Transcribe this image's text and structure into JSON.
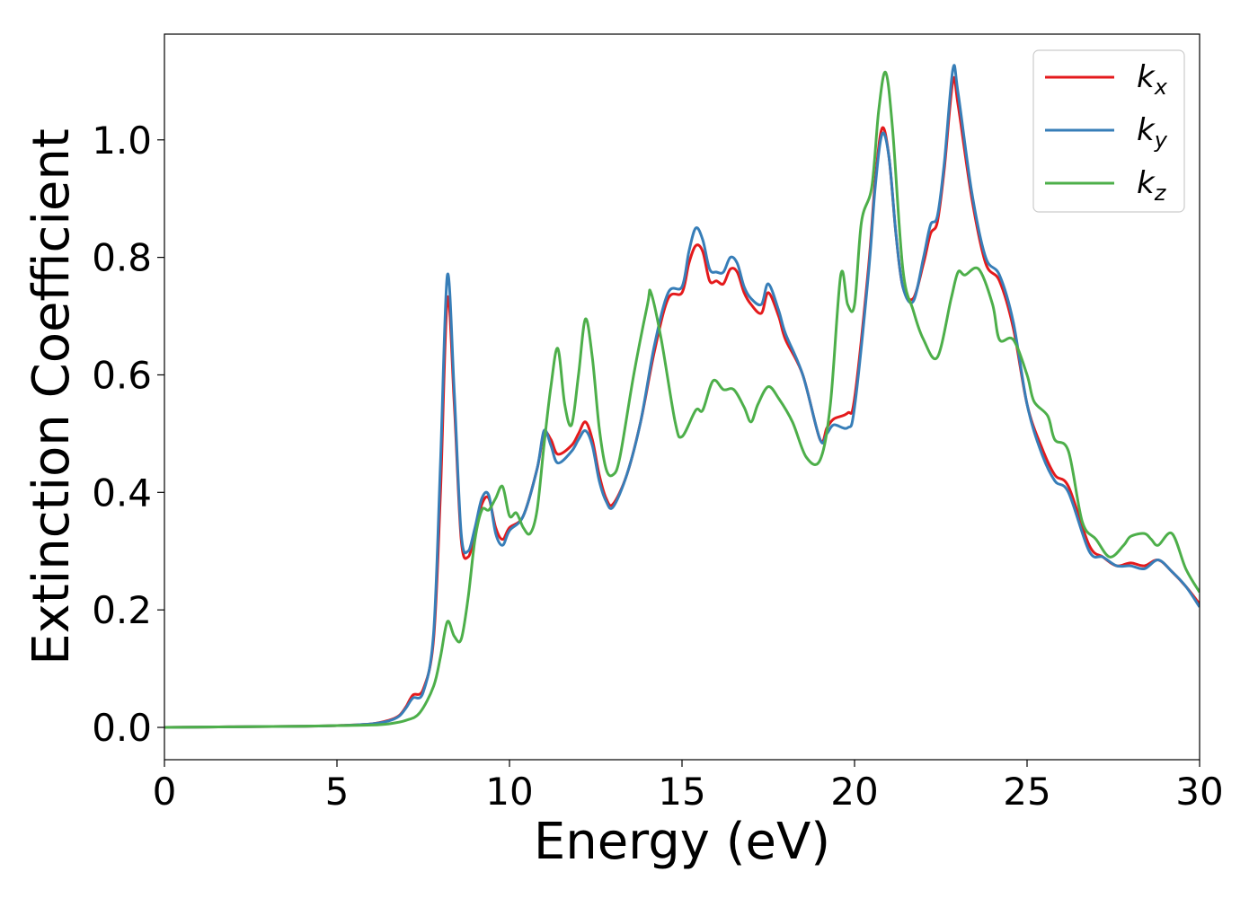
{
  "chart_data": {
    "type": "line",
    "title": "",
    "xlabel": "Energy (eV)",
    "ylabel": "Extinction Coefficient",
    "xlim": [
      0,
      30
    ],
    "ylim": [
      -0.055,
      1.18
    ],
    "xticks": [
      0,
      5,
      10,
      15,
      20,
      25,
      30
    ],
    "yticks": [
      0.0,
      0.2,
      0.4,
      0.6,
      0.8,
      1.0
    ],
    "grid": false,
    "legend_position": "top-right",
    "series": [
      {
        "name": "k",
        "subscript": "x",
        "color": "#e41a1c",
        "points": [
          [
            0,
            0
          ],
          [
            2,
            0.001
          ],
          [
            4,
            0.002
          ],
          [
            5,
            0.003
          ],
          [
            6,
            0.006
          ],
          [
            6.5,
            0.012
          ],
          [
            6.8,
            0.02
          ],
          [
            7.0,
            0.035
          ],
          [
            7.2,
            0.055
          ],
          [
            7.5,
            0.065
          ],
          [
            7.8,
            0.15
          ],
          [
            8.0,
            0.4
          ],
          [
            8.2,
            0.73
          ],
          [
            8.4,
            0.55
          ],
          [
            8.6,
            0.32
          ],
          [
            8.8,
            0.29
          ],
          [
            9.0,
            0.33
          ],
          [
            9.2,
            0.38
          ],
          [
            9.4,
            0.39
          ],
          [
            9.6,
            0.34
          ],
          [
            9.8,
            0.32
          ],
          [
            10.0,
            0.34
          ],
          [
            10.4,
            0.36
          ],
          [
            10.8,
            0.44
          ],
          [
            11.0,
            0.5
          ],
          [
            11.2,
            0.49
          ],
          [
            11.4,
            0.465
          ],
          [
            11.8,
            0.48
          ],
          [
            12.0,
            0.5
          ],
          [
            12.2,
            0.52
          ],
          [
            12.4,
            0.49
          ],
          [
            12.6,
            0.43
          ],
          [
            12.8,
            0.39
          ],
          [
            13.0,
            0.38
          ],
          [
            13.4,
            0.43
          ],
          [
            13.8,
            0.52
          ],
          [
            14.2,
            0.64
          ],
          [
            14.6,
            0.73
          ],
          [
            15.0,
            0.74
          ],
          [
            15.2,
            0.79
          ],
          [
            15.4,
            0.82
          ],
          [
            15.6,
            0.81
          ],
          [
            15.8,
            0.76
          ],
          [
            16.0,
            0.76
          ],
          [
            16.2,
            0.755
          ],
          [
            16.4,
            0.78
          ],
          [
            16.6,
            0.775
          ],
          [
            16.8,
            0.74
          ],
          [
            17.0,
            0.72
          ],
          [
            17.3,
            0.705
          ],
          [
            17.5,
            0.74
          ],
          [
            17.8,
            0.7
          ],
          [
            18.0,
            0.66
          ],
          [
            18.5,
            0.6
          ],
          [
            19.0,
            0.49
          ],
          [
            19.2,
            0.51
          ],
          [
            19.4,
            0.525
          ],
          [
            19.8,
            0.535
          ],
          [
            20.0,
            0.56
          ],
          [
            20.4,
            0.78
          ],
          [
            20.6,
            0.93
          ],
          [
            20.8,
            1.02
          ],
          [
            21.0,
            0.97
          ],
          [
            21.2,
            0.84
          ],
          [
            21.4,
            0.75
          ],
          [
            21.7,
            0.73
          ],
          [
            22.0,
            0.79
          ],
          [
            22.2,
            0.84
          ],
          [
            22.4,
            0.86
          ],
          [
            22.6,
            0.95
          ],
          [
            22.85,
            1.1
          ],
          [
            23.0,
            1.06
          ],
          [
            23.4,
            0.9
          ],
          [
            23.8,
            0.79
          ],
          [
            24.2,
            0.76
          ],
          [
            24.6,
            0.68
          ],
          [
            25.0,
            0.55
          ],
          [
            25.4,
            0.48
          ],
          [
            25.8,
            0.43
          ],
          [
            26.2,
            0.41
          ],
          [
            26.8,
            0.31
          ],
          [
            27.2,
            0.29
          ],
          [
            27.6,
            0.275
          ],
          [
            28.0,
            0.28
          ],
          [
            28.4,
            0.275
          ],
          [
            28.8,
            0.285
          ],
          [
            29.2,
            0.265
          ],
          [
            29.6,
            0.24
          ],
          [
            30.0,
            0.21
          ]
        ]
      },
      {
        "name": "k",
        "subscript": "y",
        "color": "#377eb8",
        "points": [
          [
            0,
            0
          ],
          [
            2,
            0.001
          ],
          [
            4,
            0.002
          ],
          [
            5,
            0.003
          ],
          [
            6,
            0.006
          ],
          [
            6.5,
            0.011
          ],
          [
            6.8,
            0.019
          ],
          [
            7.0,
            0.033
          ],
          [
            7.2,
            0.05
          ],
          [
            7.5,
            0.06
          ],
          [
            7.8,
            0.16
          ],
          [
            8.0,
            0.45
          ],
          [
            8.2,
            0.77
          ],
          [
            8.4,
            0.57
          ],
          [
            8.6,
            0.33
          ],
          [
            8.8,
            0.3
          ],
          [
            9.0,
            0.34
          ],
          [
            9.2,
            0.39
          ],
          [
            9.4,
            0.395
          ],
          [
            9.6,
            0.33
          ],
          [
            9.8,
            0.31
          ],
          [
            10.0,
            0.335
          ],
          [
            10.4,
            0.36
          ],
          [
            10.8,
            0.44
          ],
          [
            11.0,
            0.505
          ],
          [
            11.2,
            0.48
          ],
          [
            11.4,
            0.45
          ],
          [
            11.8,
            0.47
          ],
          [
            12.0,
            0.49
          ],
          [
            12.2,
            0.505
          ],
          [
            12.4,
            0.48
          ],
          [
            12.6,
            0.42
          ],
          [
            12.8,
            0.385
          ],
          [
            13.0,
            0.375
          ],
          [
            13.4,
            0.43
          ],
          [
            13.8,
            0.52
          ],
          [
            14.2,
            0.65
          ],
          [
            14.6,
            0.74
          ],
          [
            15.0,
            0.75
          ],
          [
            15.2,
            0.81
          ],
          [
            15.4,
            0.85
          ],
          [
            15.6,
            0.83
          ],
          [
            15.8,
            0.78
          ],
          [
            16.0,
            0.775
          ],
          [
            16.2,
            0.775
          ],
          [
            16.4,
            0.8
          ],
          [
            16.6,
            0.79
          ],
          [
            16.8,
            0.75
          ],
          [
            17.0,
            0.73
          ],
          [
            17.3,
            0.72
          ],
          [
            17.5,
            0.755
          ],
          [
            17.8,
            0.71
          ],
          [
            18.0,
            0.67
          ],
          [
            18.5,
            0.6
          ],
          [
            19.0,
            0.49
          ],
          [
            19.2,
            0.5
          ],
          [
            19.4,
            0.515
          ],
          [
            19.8,
            0.51
          ],
          [
            20.0,
            0.545
          ],
          [
            20.4,
            0.77
          ],
          [
            20.6,
            0.92
          ],
          [
            20.8,
            1.01
          ],
          [
            21.0,
            0.97
          ],
          [
            21.2,
            0.84
          ],
          [
            21.4,
            0.75
          ],
          [
            21.7,
            0.725
          ],
          [
            22.0,
            0.8
          ],
          [
            22.2,
            0.855
          ],
          [
            22.4,
            0.87
          ],
          [
            22.6,
            0.96
          ],
          [
            22.85,
            1.12
          ],
          [
            23.0,
            1.08
          ],
          [
            23.4,
            0.91
          ],
          [
            23.8,
            0.8
          ],
          [
            24.2,
            0.77
          ],
          [
            24.6,
            0.69
          ],
          [
            25.0,
            0.55
          ],
          [
            25.4,
            0.47
          ],
          [
            25.8,
            0.42
          ],
          [
            26.2,
            0.4
          ],
          [
            26.8,
            0.3
          ],
          [
            27.2,
            0.29
          ],
          [
            27.6,
            0.275
          ],
          [
            28.0,
            0.275
          ],
          [
            28.4,
            0.27
          ],
          [
            28.8,
            0.285
          ],
          [
            29.2,
            0.265
          ],
          [
            29.6,
            0.24
          ],
          [
            30.0,
            0.205
          ]
        ]
      },
      {
        "name": "k",
        "subscript": "z",
        "color": "#4daf4a",
        "points": [
          [
            0,
            0
          ],
          [
            2,
            0.001
          ],
          [
            4,
            0.002
          ],
          [
            5,
            0.003
          ],
          [
            6,
            0.004
          ],
          [
            6.5,
            0.006
          ],
          [
            7.0,
            0.012
          ],
          [
            7.4,
            0.025
          ],
          [
            7.8,
            0.07
          ],
          [
            8.0,
            0.12
          ],
          [
            8.2,
            0.18
          ],
          [
            8.4,
            0.155
          ],
          [
            8.6,
            0.15
          ],
          [
            8.8,
            0.22
          ],
          [
            9.0,
            0.32
          ],
          [
            9.2,
            0.37
          ],
          [
            9.4,
            0.37
          ],
          [
            9.6,
            0.39
          ],
          [
            9.8,
            0.41
          ],
          [
            10.0,
            0.36
          ],
          [
            10.2,
            0.365
          ],
          [
            10.4,
            0.34
          ],
          [
            10.6,
            0.33
          ],
          [
            10.8,
            0.37
          ],
          [
            11.0,
            0.48
          ],
          [
            11.2,
            0.58
          ],
          [
            11.4,
            0.645
          ],
          [
            11.6,
            0.55
          ],
          [
            11.8,
            0.515
          ],
          [
            12.0,
            0.6
          ],
          [
            12.2,
            0.695
          ],
          [
            12.4,
            0.63
          ],
          [
            12.6,
            0.51
          ],
          [
            12.8,
            0.44
          ],
          [
            13.0,
            0.43
          ],
          [
            13.2,
            0.46
          ],
          [
            13.6,
            0.6
          ],
          [
            14.0,
            0.72
          ],
          [
            14.1,
            0.74
          ],
          [
            14.4,
            0.66
          ],
          [
            14.8,
            0.52
          ],
          [
            15.0,
            0.495
          ],
          [
            15.4,
            0.54
          ],
          [
            15.6,
            0.54
          ],
          [
            15.9,
            0.59
          ],
          [
            16.2,
            0.575
          ],
          [
            16.5,
            0.575
          ],
          [
            16.8,
            0.545
          ],
          [
            17.0,
            0.52
          ],
          [
            17.2,
            0.55
          ],
          [
            17.5,
            0.58
          ],
          [
            17.8,
            0.56
          ],
          [
            18.2,
            0.52
          ],
          [
            18.6,
            0.46
          ],
          [
            19.0,
            0.455
          ],
          [
            19.3,
            0.55
          ],
          [
            19.6,
            0.77
          ],
          [
            19.8,
            0.72
          ],
          [
            20.0,
            0.72
          ],
          [
            20.2,
            0.86
          ],
          [
            20.5,
            0.92
          ],
          [
            20.7,
            1.05
          ],
          [
            20.9,
            1.115
          ],
          [
            21.1,
            1.02
          ],
          [
            21.4,
            0.78
          ],
          [
            21.7,
            0.71
          ],
          [
            22.0,
            0.66
          ],
          [
            22.4,
            0.63
          ],
          [
            22.8,
            0.73
          ],
          [
            23.0,
            0.775
          ],
          [
            23.2,
            0.77
          ],
          [
            23.6,
            0.78
          ],
          [
            24.0,
            0.72
          ],
          [
            24.2,
            0.66
          ],
          [
            24.6,
            0.66
          ],
          [
            25.0,
            0.6
          ],
          [
            25.2,
            0.555
          ],
          [
            25.6,
            0.53
          ],
          [
            25.8,
            0.49
          ],
          [
            26.2,
            0.47
          ],
          [
            26.6,
            0.35
          ],
          [
            27.0,
            0.32
          ],
          [
            27.4,
            0.29
          ],
          [
            27.8,
            0.31
          ],
          [
            28.0,
            0.325
          ],
          [
            28.4,
            0.33
          ],
          [
            28.6,
            0.32
          ],
          [
            28.8,
            0.31
          ],
          [
            29.2,
            0.33
          ],
          [
            29.6,
            0.27
          ],
          [
            30.0,
            0.23
          ]
        ]
      }
    ]
  }
}
